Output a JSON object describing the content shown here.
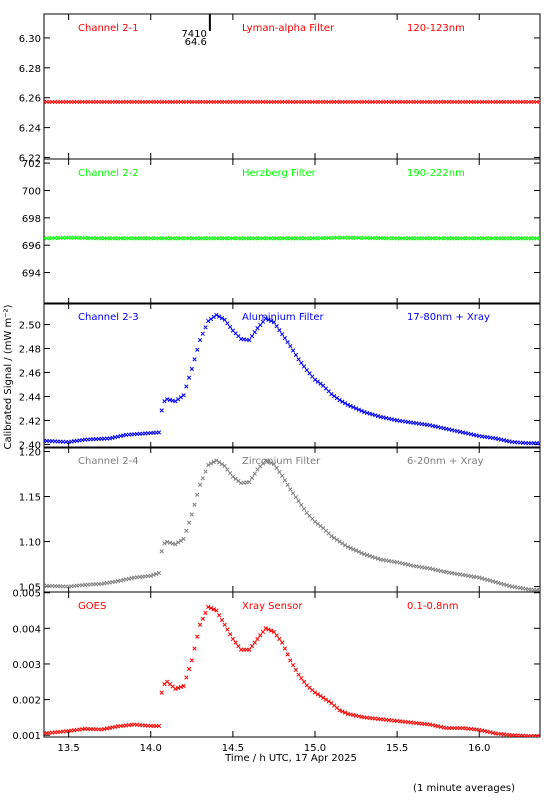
{
  "figure": {
    "ylabel": "Calibrated Signal / (mW m⁻²)",
    "xlabel": "Time / h UTC, 17 Apr 2025",
    "footnote": "(1 minute averages)",
    "marker_value": "7410",
    "marker_sub": "64.6"
  },
  "chart_data": [
    {
      "type": "scatter",
      "channel": "Channel 2-1",
      "filter": "Lyman-alpha Filter",
      "band": "120-123nm",
      "color": "#ff0000",
      "xlim": [
        13.35,
        16.37
      ],
      "ylim": [
        6.219,
        6.316
      ],
      "yticks": [
        6.22,
        6.24,
        6.26,
        6.28,
        6.3
      ],
      "ytick_labels": [
        "6.22",
        "6.24",
        "6.26",
        "6.28",
        "6.30"
      ],
      "marker_x": 14.36,
      "points": [
        [
          13.35,
          6.2572
        ],
        [
          16.37,
          6.2572
        ]
      ]
    },
    {
      "type": "scatter",
      "channel": "Channel 2-2",
      "filter": "Herzberg Filter",
      "band": "190-222nm",
      "color": "#00ff00",
      "xlim": [
        13.35,
        16.37
      ],
      "ylim": [
        691.7,
        702.3
      ],
      "yticks": [
        694,
        696,
        698,
        700,
        702
      ],
      "ytick_labels": [
        "694",
        "696",
        "698",
        "700",
        "702"
      ],
      "points": [
        [
          13.35,
          696.5
        ],
        [
          13.5,
          696.55
        ],
        [
          13.7,
          696.5
        ],
        [
          14.0,
          696.5
        ],
        [
          14.5,
          696.5
        ],
        [
          15.0,
          696.5
        ],
        [
          15.15,
          696.55
        ],
        [
          15.5,
          696.5
        ],
        [
          16.0,
          696.5
        ],
        [
          16.37,
          696.5
        ]
      ]
    },
    {
      "type": "scatter",
      "channel": "Channel 2-3",
      "filter": "Aluminium Filter",
      "band": "17-80nm + Xray",
      "color": "#0000ff",
      "xlim": [
        13.35,
        16.37
      ],
      "ylim": [
        2.397,
        2.518
      ],
      "yticks": [
        2.4,
        2.42,
        2.44,
        2.46,
        2.48,
        2.5
      ],
      "ytick_labels": [
        "2.40",
        "2.42",
        "2.44",
        "2.46",
        "2.48",
        "2.50"
      ],
      "points": [
        [
          13.35,
          2.403
        ],
        [
          13.5,
          2.402
        ],
        [
          13.6,
          2.404
        ],
        [
          13.75,
          2.405
        ],
        [
          13.85,
          2.408
        ],
        [
          13.95,
          2.409
        ],
        [
          14.05,
          2.41
        ],
        [
          14.07,
          2.432
        ],
        [
          14.09,
          2.438
        ],
        [
          14.15,
          2.436
        ],
        [
          14.2,
          2.441
        ],
        [
          14.25,
          2.463
        ],
        [
          14.3,
          2.487
        ],
        [
          14.35,
          2.503
        ],
        [
          14.4,
          2.508
        ],
        [
          14.45,
          2.504
        ],
        [
          14.5,
          2.495
        ],
        [
          14.55,
          2.488
        ],
        [
          14.6,
          2.487
        ],
        [
          14.65,
          2.497
        ],
        [
          14.7,
          2.505
        ],
        [
          14.75,
          2.502
        ],
        [
          14.8,
          2.492
        ],
        [
          14.85,
          2.482
        ],
        [
          14.9,
          2.471
        ],
        [
          14.95,
          2.462
        ],
        [
          15.0,
          2.454
        ],
        [
          15.05,
          2.449
        ],
        [
          15.1,
          2.442
        ],
        [
          15.15,
          2.437
        ],
        [
          15.2,
          2.433
        ],
        [
          15.3,
          2.427
        ],
        [
          15.4,
          2.423
        ],
        [
          15.5,
          2.42
        ],
        [
          15.6,
          2.418
        ],
        [
          15.7,
          2.416
        ],
        [
          15.8,
          2.413
        ],
        [
          15.9,
          2.41
        ],
        [
          16.0,
          2.407
        ],
        [
          16.1,
          2.405
        ],
        [
          16.2,
          2.402
        ],
        [
          16.3,
          2.401
        ],
        [
          16.37,
          2.401
        ]
      ]
    },
    {
      "type": "scatter",
      "channel": "Channel 2-4",
      "filter": "Zirconium Filter",
      "band": "6-20nm + Xray",
      "color": "#808080",
      "xlim": [
        13.35,
        16.37
      ],
      "ylim": [
        1.044,
        1.205
      ],
      "yticks": [
        1.05,
        1.1,
        1.15,
        1.2
      ],
      "ytick_labels": [
        "1.05",
        "1.10",
        "1.15",
        "1.20"
      ],
      "points": [
        [
          13.35,
          1.051
        ],
        [
          13.5,
          1.05
        ],
        [
          13.6,
          1.052
        ],
        [
          13.7,
          1.053
        ],
        [
          13.8,
          1.056
        ],
        [
          13.9,
          1.06
        ],
        [
          14.0,
          1.062
        ],
        [
          14.05,
          1.065
        ],
        [
          14.07,
          1.094
        ],
        [
          14.09,
          1.1
        ],
        [
          14.15,
          1.097
        ],
        [
          14.2,
          1.103
        ],
        [
          14.25,
          1.13
        ],
        [
          14.3,
          1.163
        ],
        [
          14.35,
          1.185
        ],
        [
          14.4,
          1.19
        ],
        [
          14.45,
          1.184
        ],
        [
          14.5,
          1.172
        ],
        [
          14.55,
          1.165
        ],
        [
          14.6,
          1.166
        ],
        [
          14.65,
          1.18
        ],
        [
          14.7,
          1.19
        ],
        [
          14.75,
          1.186
        ],
        [
          14.8,
          1.173
        ],
        [
          14.85,
          1.158
        ],
        [
          14.9,
          1.145
        ],
        [
          14.95,
          1.132
        ],
        [
          15.0,
          1.122
        ],
        [
          15.05,
          1.115
        ],
        [
          15.1,
          1.106
        ],
        [
          15.15,
          1.1
        ],
        [
          15.2,
          1.094
        ],
        [
          15.3,
          1.086
        ],
        [
          15.4,
          1.08
        ],
        [
          15.5,
          1.077
        ],
        [
          15.6,
          1.073
        ],
        [
          15.7,
          1.07
        ],
        [
          15.8,
          1.066
        ],
        [
          15.9,
          1.063
        ],
        [
          16.0,
          1.06
        ],
        [
          16.1,
          1.055
        ],
        [
          16.2,
          1.05
        ],
        [
          16.3,
          1.047
        ],
        [
          16.37,
          1.046
        ]
      ]
    },
    {
      "type": "scatter",
      "channel": "GOES",
      "filter": "Xray Sensor",
      "band": "0.1-0.8nm",
      "color": "#ff0000",
      "xlim": [
        13.35,
        16.37
      ],
      "ylim": [
        0.00095,
        0.00502
      ],
      "yticks": [
        0.001,
        0.002,
        0.003,
        0.004,
        0.005
      ],
      "ytick_labels": [
        "0.001",
        "0.002",
        "0.003",
        "0.004",
        "0.005"
      ],
      "points": [
        [
          13.35,
          0.00105
        ],
        [
          13.5,
          0.00112
        ],
        [
          13.6,
          0.00118
        ],
        [
          13.7,
          0.00116
        ],
        [
          13.8,
          0.00125
        ],
        [
          13.9,
          0.0013
        ],
        [
          14.0,
          0.00126
        ],
        [
          14.05,
          0.00126
        ],
        [
          14.07,
          0.00238
        ],
        [
          14.1,
          0.0025
        ],
        [
          14.15,
          0.0023
        ],
        [
          14.2,
          0.00238
        ],
        [
          14.25,
          0.0031
        ],
        [
          14.3,
          0.0041
        ],
        [
          14.35,
          0.0046
        ],
        [
          14.4,
          0.0045
        ],
        [
          14.45,
          0.0041
        ],
        [
          14.5,
          0.0037
        ],
        [
          14.55,
          0.0034
        ],
        [
          14.6,
          0.0034
        ],
        [
          14.65,
          0.0037
        ],
        [
          14.7,
          0.004
        ],
        [
          14.75,
          0.0039
        ],
        [
          14.8,
          0.0036
        ],
        [
          14.85,
          0.0031
        ],
        [
          14.9,
          0.0027
        ],
        [
          14.95,
          0.0024
        ],
        [
          15.0,
          0.0022
        ],
        [
          15.05,
          0.00205
        ],
        [
          15.1,
          0.0019
        ],
        [
          15.15,
          0.0017
        ],
        [
          15.2,
          0.0016
        ],
        [
          15.3,
          0.0015
        ],
        [
          15.4,
          0.00145
        ],
        [
          15.5,
          0.0014
        ],
        [
          15.6,
          0.00135
        ],
        [
          15.7,
          0.0013
        ],
        [
          15.8,
          0.0012
        ],
        [
          15.9,
          0.0012
        ],
        [
          16.0,
          0.00115
        ],
        [
          16.1,
          0.00105
        ],
        [
          16.2,
          0.001
        ],
        [
          16.3,
          0.00098
        ],
        [
          16.37,
          0.00097
        ]
      ]
    }
  ],
  "x_axis": {
    "ticks": [
      13.5,
      14.0,
      14.5,
      15.0,
      15.5,
      16.0
    ],
    "tick_labels": [
      "13.5",
      "14.0",
      "14.5",
      "15.0",
      "15.5",
      "16.0"
    ]
  }
}
